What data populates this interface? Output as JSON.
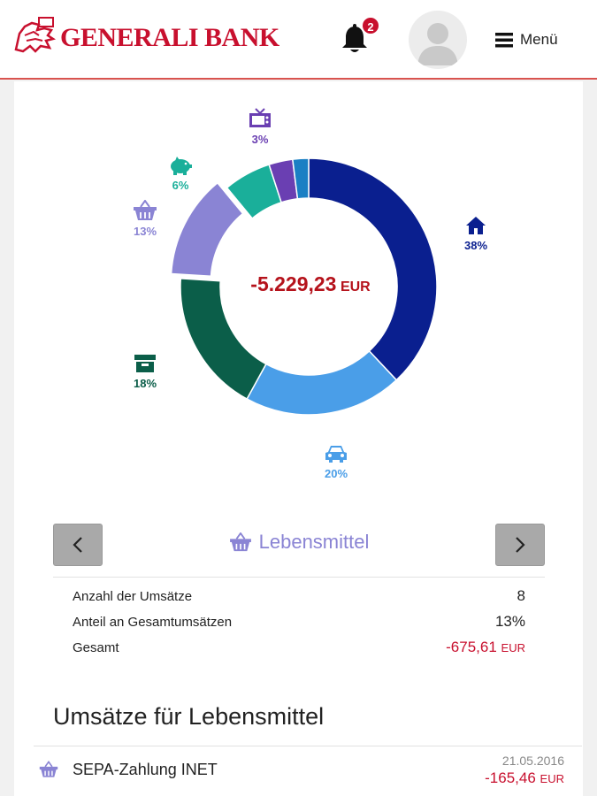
{
  "header": {
    "brand": "GENERALI BANK",
    "notification_count": "2",
    "menu_label": "Menü"
  },
  "donut": {
    "total_amount": "-5.229,23",
    "total_currency": "EUR",
    "segments": [
      {
        "id": "housing",
        "icon": "house-icon",
        "percent": 38,
        "label": "38%",
        "color": "#0a1f8f"
      },
      {
        "id": "car",
        "icon": "car-icon",
        "percent": 20,
        "label": "20%",
        "color": "#4a9ee8"
      },
      {
        "id": "archive",
        "icon": "archive-box-icon",
        "percent": 18,
        "label": "18%",
        "color": "#0b5e49"
      },
      {
        "id": "groceries",
        "icon": "basket-icon",
        "percent": 13,
        "label": "13%",
        "color": "#8a84d4",
        "selected": true
      },
      {
        "id": "savings",
        "icon": "piggy-bank-icon",
        "percent": 6,
        "label": "6%",
        "color": "#1aaf9a"
      },
      {
        "id": "tv",
        "icon": "tv-icon",
        "percent": 3,
        "label": "3%",
        "color": "#6a3fb2"
      },
      {
        "id": "other",
        "icon": "",
        "percent": 2,
        "label": "",
        "color": "#1a7fc4"
      }
    ]
  },
  "category": {
    "title": "Lebensmittel",
    "icon": "basket-icon",
    "color": "#8a84d4"
  },
  "stats": {
    "count_label": "Anzahl der Umsätze",
    "count_value": "8",
    "share_label": "Anteil an Gesamtumsätzen",
    "share_value": "13%",
    "total_label": "Gesamt",
    "total_value": "-675,61",
    "total_currency": "EUR"
  },
  "transactions": {
    "title": "Umsätze für Lebensmittel",
    "items": [
      {
        "name": "SEPA-Zahlung INET",
        "date": "21.05.2016",
        "amount": "-165,46",
        "currency": "EUR"
      }
    ]
  }
}
